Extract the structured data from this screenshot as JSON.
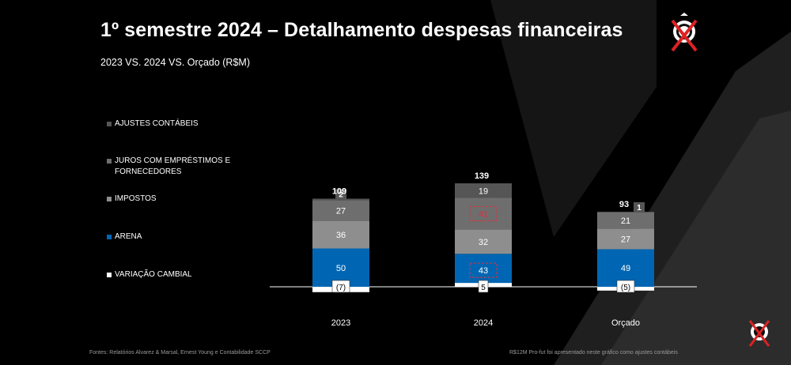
{
  "header": {
    "title": "1º semestre 2024 – Detalhamento despesas financeiras",
    "subtitle": "2023 VS. 2024 VS. Orçado (R$M)"
  },
  "footer": {
    "sources": "Fontes: Relatórios Alvarez & Marsal, Ernest Young e Contabilidade SCCP",
    "note": "R$12M Pro-fut foi apresentado neste gráfico como ajustes contábeis"
  },
  "colors": {
    "ajustes": "#555555",
    "juros": "#6e6e6e",
    "impostos": "#8e8e8e",
    "arena": "#0066b3",
    "variacao": "#ffffff",
    "highlight_box": "#e0303a"
  },
  "chart_data": {
    "type": "bar",
    "stacked": true,
    "categories": [
      "2023",
      "2024",
      "Orçado"
    ],
    "totals": [
      "109",
      "139",
      "93"
    ],
    "legend": [
      {
        "key": "ajustes",
        "label": "AJUSTES CONTÁBEIS"
      },
      {
        "key": "juros",
        "label": "JUROS COM EMPRÉSTIMOS E FORNECEDORES"
      },
      {
        "key": "impostos",
        "label": "IMPOSTOS"
      },
      {
        "key": "arena",
        "label": "ARENA"
      },
      {
        "key": "variacao",
        "label": "VARIAÇÃO CAMBIAL"
      }
    ],
    "series": [
      {
        "key": "variacao",
        "name": "VARIAÇÃO CAMBIAL",
        "values": [
          -7,
          5,
          -5
        ],
        "labels": [
          "(7)",
          "5",
          "(5)"
        ]
      },
      {
        "key": "arena",
        "name": "ARENA",
        "values": [
          50,
          43,
          49
        ],
        "labels": [
          "50",
          "43",
          "49"
        ]
      },
      {
        "key": "impostos",
        "name": "IMPOSTOS",
        "values": [
          36,
          32,
          27
        ],
        "labels": [
          "36",
          "32",
          "27"
        ]
      },
      {
        "key": "juros",
        "name": "JUROS COM EMPRÉSTIMOS E FORNECEDORES",
        "values": [
          27,
          41,
          21
        ],
        "labels": [
          "27",
          "41",
          "21"
        ]
      },
      {
        "key": "ajustes",
        "name": "AJUSTES CONTÁBEIS",
        "values": [
          2,
          19,
          1
        ],
        "labels": [
          "2",
          "19",
          "1"
        ]
      }
    ],
    "highlighted": [
      {
        "category": "2024",
        "series": "juros"
      },
      {
        "category": "2024",
        "series": "arena"
      }
    ],
    "ylim": [
      -8,
      140
    ],
    "xlabel": "",
    "ylabel": ""
  }
}
